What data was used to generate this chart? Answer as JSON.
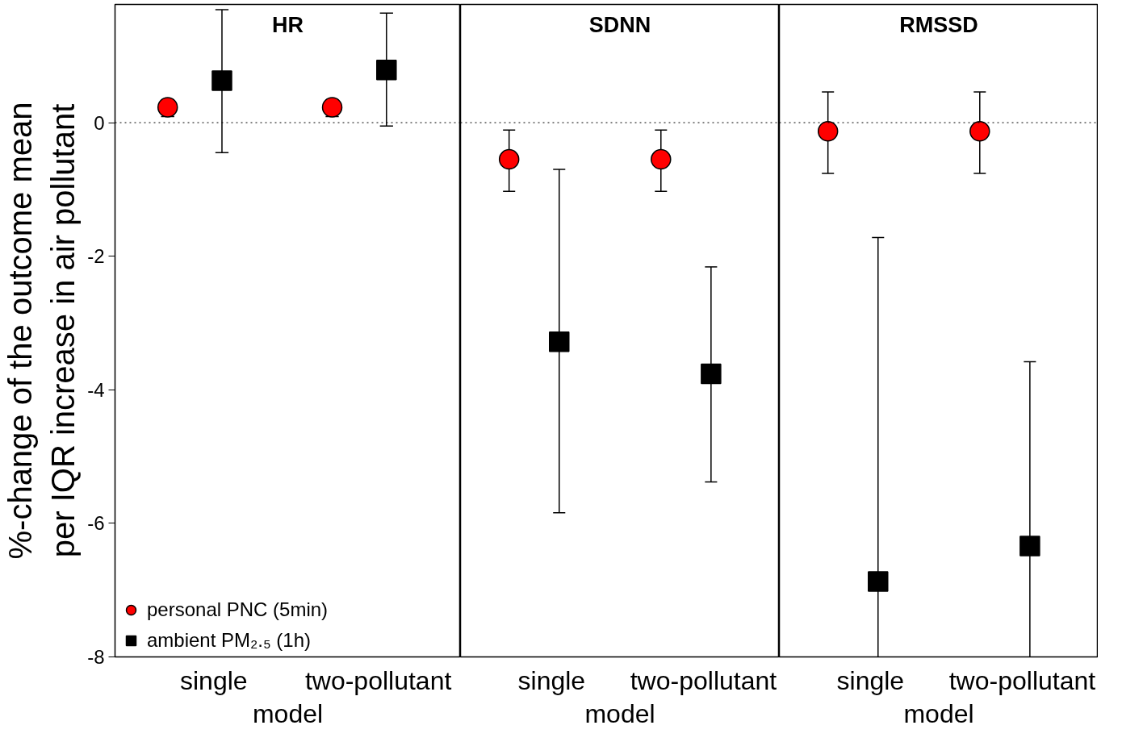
{
  "chart_data": [
    {
      "type": "scatter",
      "title": "HR",
      "categories": [
        "single",
        "two-pollutant"
      ],
      "xlabel": "model",
      "ylabel": "%-change of the outcome mean per IQR increase in air pollutant",
      "ylim": [
        -8,
        1.77
      ],
      "yticks": [
        0,
        -2,
        -4,
        -6,
        -8
      ],
      "legend": "bottom left",
      "series": [
        {
          "name": "personal PNC (5min)",
          "color": "#ff0000",
          "marker": "circle",
          "values": [
            0.23,
            0.23
          ],
          "errors": [
            [
              0.09,
              0.34
            ],
            [
              0.09,
              0.34
            ]
          ]
        },
        {
          "name": "ambient PM₂.₅ (1h)",
          "color": "#000000",
          "marker": "square",
          "values": [
            0.63,
            0.79
          ],
          "errors": [
            [
              -0.45,
              1.69
            ],
            [
              -0.05,
              1.64
            ]
          ]
        }
      ],
      "ref_lines": [
        {
          "axis": "y",
          "value": 0,
          "line_style": "dotted"
        }
      ]
    },
    {
      "type": "scatter",
      "title": "SDNN",
      "categories": [
        "single",
        "two-pollutant"
      ],
      "xlabel": "model",
      "ylim": [
        -8,
        1.77
      ],
      "tick_labels": "x",
      "series": [
        {
          "color": "#ff0000",
          "marker": "circle",
          "values": [
            -0.55,
            -0.55
          ],
          "errors": [
            [
              -1.03,
              -0.11
            ],
            [
              -1.03,
              -0.11
            ]
          ]
        },
        {
          "color": "#000000",
          "marker": "square",
          "values": [
            -3.28,
            -3.76
          ],
          "errors": [
            [
              -5.84,
              -0.7
            ],
            [
              -5.38,
              -2.16
            ]
          ]
        }
      ],
      "ref_lines": [
        {
          "axis": "y",
          "value": 0,
          "line_style": "dotted"
        }
      ]
    },
    {
      "type": "scatter",
      "title": "RMSSD",
      "categories": [
        "single",
        "two-pollutant"
      ],
      "xlabel": "model",
      "ylim": [
        -8,
        1.77
      ],
      "tick_labels": "x",
      "series": [
        {
          "color": "#ff0000",
          "marker": "circle",
          "values": [
            -0.13,
            -0.13
          ],
          "errors": [
            [
              -0.76,
              0.46
            ],
            [
              -0.76,
              0.46
            ]
          ]
        },
        {
          "color": "#000000",
          "marker": "square",
          "values": [
            -6.87,
            -6.34
          ],
          "errors": [
            [
              -8,
              -1.72
            ],
            [
              -8,
              -3.58
            ]
          ]
        }
      ],
      "ref_lines": [
        {
          "axis": "y",
          "value": 0,
          "line_style": "dotted"
        }
      ]
    }
  ]
}
